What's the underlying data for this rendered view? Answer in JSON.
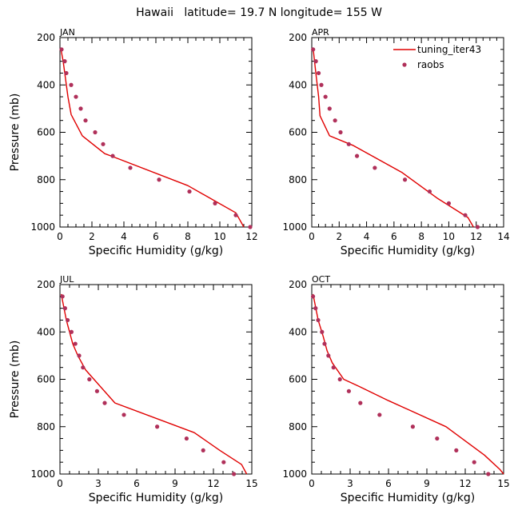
{
  "title": "Hawaii   latitude= 19.7 N longitude= 155 W",
  "colors": {
    "model_line": "#e00000",
    "obs_points": "#b0305a",
    "axes": "#000000"
  },
  "legend": {
    "placement": "top-right of APR panel",
    "entries": [
      {
        "label": "tuning_iter43",
        "kind": "line",
        "color": "#e00000"
      },
      {
        "label": "raobs",
        "kind": "marker",
        "color": "#b0305a"
      }
    ]
  },
  "chart_data": [
    {
      "type": "line",
      "panel_label": "JAN",
      "xlabel": "Specific Humidity (g/kg)",
      "ylabel": "Pressure (mb)",
      "xlim": [
        0,
        12
      ],
      "ylim": [
        1000,
        200
      ],
      "y_reversed": true,
      "xticks": [
        "0",
        "2",
        "4",
        "6",
        "8",
        "10",
        "12"
      ],
      "yticks": [
        "200",
        "400",
        "600",
        "800",
        "1000"
      ],
      "series": [
        {
          "name": "tuning_iter43",
          "kind": "line",
          "x": [
            0.05,
            0.2,
            0.3,
            0.5,
            0.7,
            1.4,
            2.8,
            3.2,
            8.0,
            11.0,
            11.5
          ],
          "y": [
            245,
            300,
            350,
            450,
            525,
            615,
            690,
            700,
            825,
            940,
            1000
          ]
        },
        {
          "name": "raobs",
          "kind": "points",
          "x": [
            0.1,
            0.3,
            0.4,
            0.7,
            1.0,
            1.3,
            1.6,
            2.2,
            2.7,
            3.3,
            4.4,
            6.2,
            8.1,
            9.7,
            11.0,
            11.9
          ],
          "y": [
            250,
            300,
            350,
            400,
            450,
            500,
            550,
            600,
            650,
            700,
            750,
            800,
            850,
            900,
            950,
            1000
          ]
        }
      ]
    },
    {
      "type": "line",
      "panel_label": "APR",
      "xlabel": "Specific Humidity (g/kg)",
      "ylabel": "",
      "xlim": [
        0,
        14
      ],
      "ylim": [
        1000,
        200
      ],
      "y_reversed": true,
      "xticks": [
        "0",
        "2",
        "4",
        "6",
        "8",
        "10",
        "12",
        "14"
      ],
      "yticks": [
        "200",
        "400",
        "600",
        "800",
        "1000"
      ],
      "series": [
        {
          "name": "tuning_iter43",
          "kind": "line",
          "x": [
            0.1,
            0.3,
            0.5,
            0.6,
            1.3,
            3.0,
            6.6,
            9.2,
            11.4,
            11.8
          ],
          "y": [
            245,
            350,
            450,
            530,
            615,
            655,
            770,
            880,
            960,
            1000
          ]
        },
        {
          "name": "raobs",
          "kind": "points",
          "x": [
            0.1,
            0.3,
            0.5,
            0.7,
            1.0,
            1.3,
            1.7,
            2.1,
            2.7,
            3.3,
            4.6,
            6.8,
            8.6,
            10.0,
            11.2,
            12.1
          ],
          "y": [
            250,
            300,
            350,
            400,
            450,
            500,
            550,
            600,
            650,
            700,
            750,
            800,
            850,
            900,
            950,
            1000
          ]
        }
      ]
    },
    {
      "type": "line",
      "panel_label": "JUL",
      "xlabel": "Specific Humidity (g/kg)",
      "ylabel": "Pressure (mb)",
      "xlim": [
        0,
        15
      ],
      "ylim": [
        1000,
        200
      ],
      "y_reversed": true,
      "xticks": [
        "0",
        "3",
        "6",
        "9",
        "12",
        "15"
      ],
      "yticks": [
        "200",
        "400",
        "600",
        "800",
        "1000"
      ],
      "series": [
        {
          "name": "tuning_iter43",
          "kind": "line",
          "x": [
            0.1,
            0.5,
            1.0,
            1.4,
            2.0,
            4.3,
            10.5,
            12.5,
            14.2,
            14.6
          ],
          "y": [
            240,
            350,
            450,
            500,
            560,
            700,
            825,
            900,
            960,
            1000
          ]
        },
        {
          "name": "raobs",
          "kind": "points",
          "x": [
            0.2,
            0.4,
            0.6,
            0.9,
            1.2,
            1.5,
            1.8,
            2.3,
            2.9,
            3.5,
            5.0,
            7.6,
            9.9,
            11.2,
            12.8,
            13.6
          ],
          "y": [
            250,
            300,
            350,
            400,
            450,
            500,
            550,
            600,
            650,
            700,
            750,
            800,
            850,
            900,
            950,
            1000
          ]
        }
      ]
    },
    {
      "type": "line",
      "panel_label": "OCT",
      "xlabel": "Specific Humidity (g/kg)",
      "ylabel": "",
      "xlim": [
        0,
        15
      ],
      "ylim": [
        1000,
        200
      ],
      "y_reversed": true,
      "xticks": [
        "0",
        "3",
        "6",
        "9",
        "12",
        "15"
      ],
      "yticks": [
        "200",
        "400",
        "600",
        "800",
        "1000"
      ],
      "series": [
        {
          "name": "tuning_iter43",
          "kind": "line",
          "x": [
            0.1,
            0.5,
            0.9,
            1.2,
            1.6,
            2.5,
            3.7,
            6.0,
            10.5,
            13.5,
            14.7,
            15.0
          ],
          "y": [
            240,
            350,
            420,
            480,
            530,
            600,
            630,
            690,
            800,
            920,
            980,
            1000
          ]
        },
        {
          "name": "raobs",
          "kind": "points",
          "x": [
            0.1,
            0.3,
            0.5,
            0.8,
            1.0,
            1.3,
            1.7,
            2.2,
            2.9,
            3.8,
            5.3,
            7.9,
            9.8,
            11.3,
            12.7,
            13.8
          ],
          "y": [
            250,
            300,
            350,
            400,
            450,
            500,
            550,
            600,
            650,
            700,
            750,
            800,
            850,
            900,
            950,
            1000
          ]
        }
      ]
    }
  ]
}
